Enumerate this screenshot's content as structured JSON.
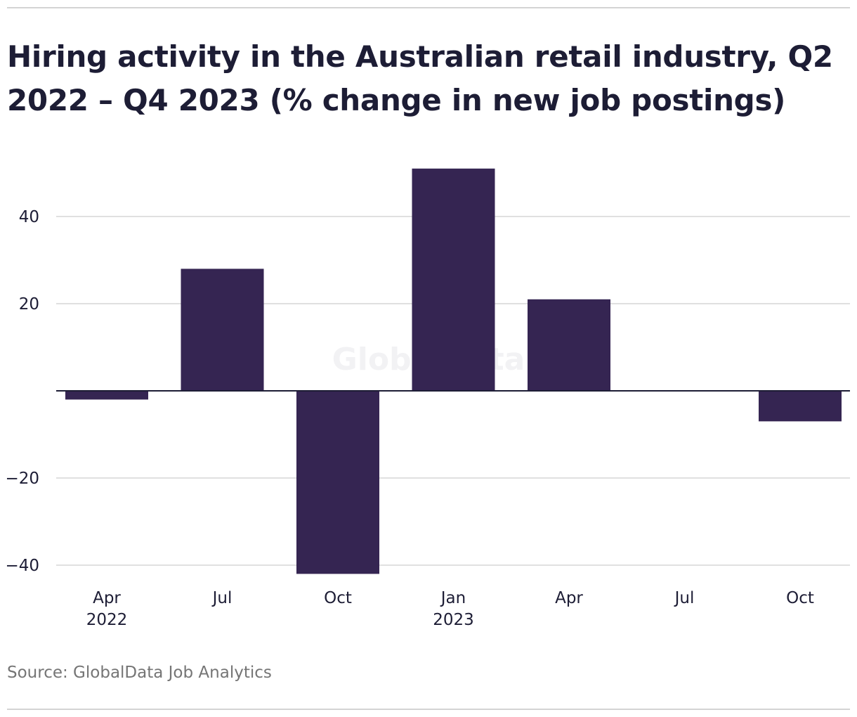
{
  "title": "Hiring activity in the Australian retail industry, Q2 2022 – Q4 2023 (% change in new job postings)",
  "source": "Source: GlobalData Job Analytics",
  "watermark": "GlobalData",
  "colors": {
    "bar": "#352552",
    "grid": "#d6d6d6",
    "zero_line": "#1d1d35",
    "text": "#1d1d35",
    "source_text": "#757575",
    "watermark": "#f2f2f4"
  },
  "chart_data": {
    "type": "bar",
    "categories": [
      "Apr 2022",
      "Jul 2022",
      "Oct 2022",
      "Jan 2023",
      "Apr 2023",
      "Jul 2023",
      "Oct 2023"
    ],
    "tick_labels": [
      [
        "Apr",
        "2022"
      ],
      [
        "Jul"
      ],
      [
        "Oct"
      ],
      [
        "Jan",
        "2023"
      ],
      [
        "Apr"
      ],
      [
        "Jul"
      ],
      [
        "Oct"
      ]
    ],
    "values": [
      -2,
      28,
      -42,
      51,
      21,
      0,
      -7
    ],
    "yticks": [
      -40,
      -20,
      20,
      40
    ],
    "ytick_labels": [
      "−40",
      "−20",
      "20",
      "40"
    ],
    "ylim": [
      -42,
      51
    ],
    "xlabel": "",
    "ylabel": "",
    "grid": true,
    "legend": "none"
  }
}
